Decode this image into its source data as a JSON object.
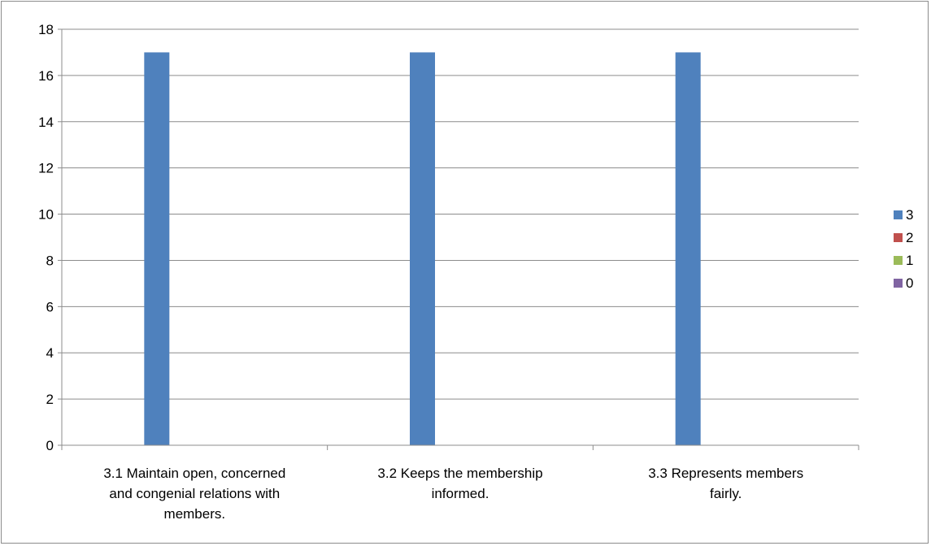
{
  "chart_data": {
    "type": "bar",
    "categories": [
      [
        "3.1 Maintain open, concerned",
        "and congenial relations with",
        "members."
      ],
      [
        "3.2 Keeps the membership",
        "informed."
      ],
      [
        "3.3 Represents members",
        "fairly."
      ]
    ],
    "series": [
      {
        "name": "3",
        "values": [
          17,
          17,
          17
        ],
        "color": "#4f81bd"
      },
      {
        "name": "2",
        "values": [
          0,
          0,
          0
        ],
        "color": "#c0504d"
      },
      {
        "name": "1",
        "values": [
          0,
          0,
          0
        ],
        "color": "#9bbb59"
      },
      {
        "name": "0",
        "values": [
          0,
          0,
          0
        ],
        "color": "#8064a2"
      }
    ],
    "ylim": [
      0,
      18
    ],
    "yticks": [
      0,
      2,
      4,
      6,
      8,
      10,
      12,
      14,
      16,
      18
    ],
    "grid": true,
    "legend_position": "right"
  }
}
